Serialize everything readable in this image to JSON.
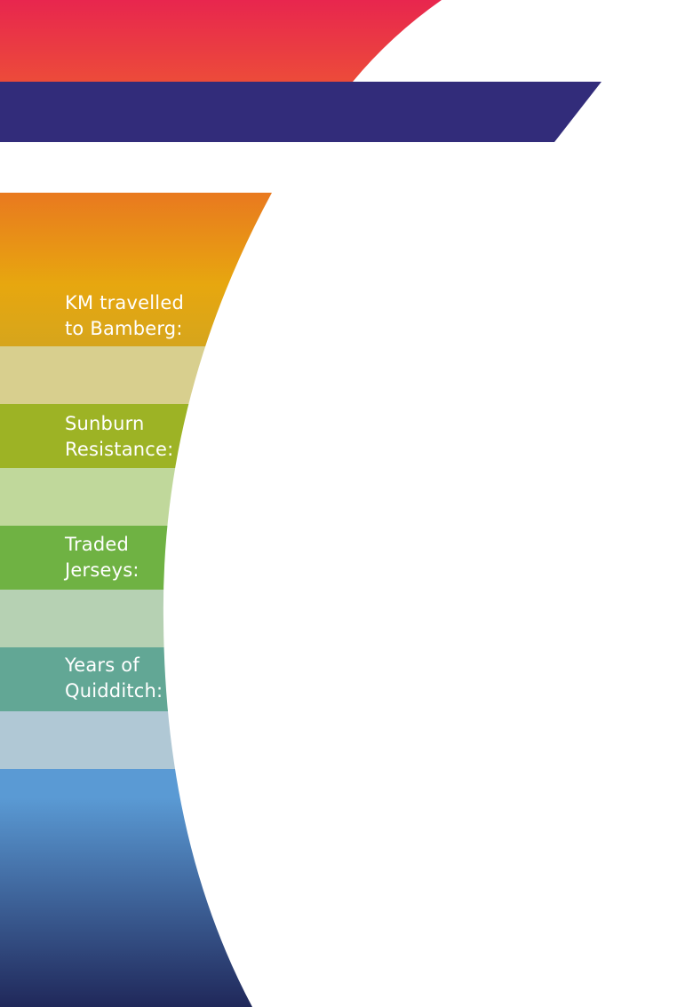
{
  "stats": [
    {
      "label_line1": "KM travelled",
      "label_line2": "to Bamberg:",
      "value": ""
    },
    {
      "label_line1": "Sunburn",
      "label_line2": "Resistance:",
      "value": ""
    },
    {
      "label_line1": "Traded",
      "label_line2": "Jerseys:",
      "value": ""
    },
    {
      "label_line1": "Years of",
      "label_line2": "Quidditch:",
      "value": ""
    }
  ],
  "colors": {
    "top_red": "#e8264e",
    "top_orange": "#ec4b3a",
    "navy_band": "#322c7a",
    "orange": "#e9791f",
    "amber": "#e7a70f",
    "khaki": "#d8cf8e",
    "olive": "#9db325",
    "pale_green": "#c0d89b",
    "green": "#6fb243",
    "sage": "#b6d1b3",
    "teal": "#62a795",
    "light_blue_grey": "#b0c8d5",
    "sky_blue": "#5a9ad4",
    "dark_navy": "#20285a"
  }
}
